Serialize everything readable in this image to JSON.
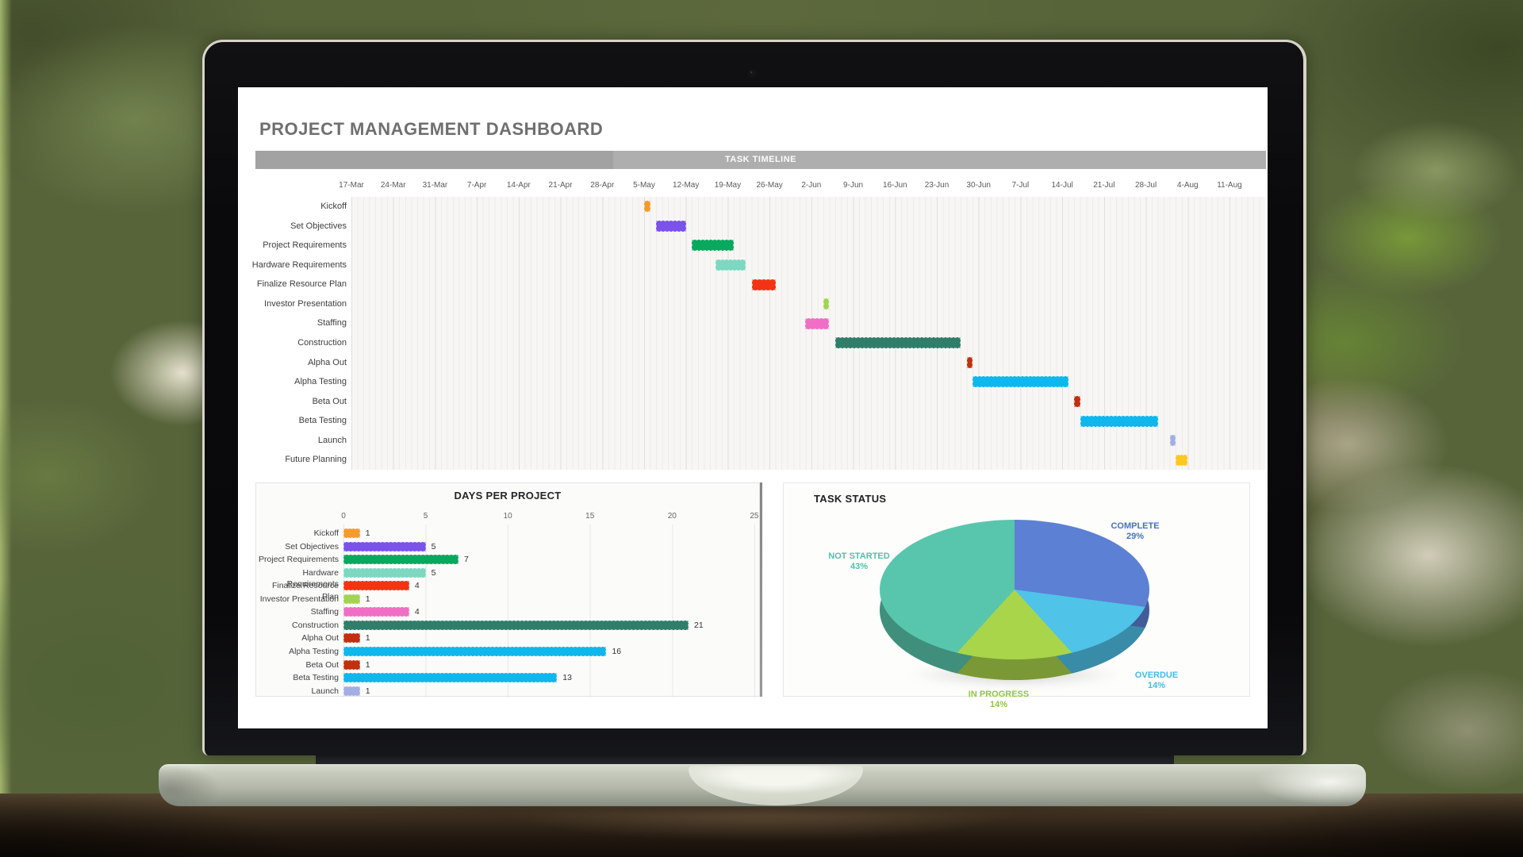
{
  "dashboard": {
    "title": "PROJECT MANAGEMENT DASHBOARD"
  },
  "chart_data": [
    {
      "type": "bar",
      "subtype": "gantt-timeline",
      "title": "TASK TIMELINE",
      "x_tick_labels": [
        "17-Mar",
        "24-Mar",
        "31-Mar",
        "7-Apr",
        "14-Apr",
        "21-Apr",
        "28-Apr",
        "5-May",
        "12-May",
        "19-May",
        "26-May",
        "2-Jun",
        "9-Jun",
        "16-Jun",
        "23-Jun",
        "30-Jun",
        "7-Jul",
        "14-Jul",
        "21-Jul",
        "28-Jul",
        "4-Aug",
        "11-Aug"
      ],
      "days_per_tick": 7,
      "categories": [
        "Kickoff",
        "Set Objectives",
        "Project Requirements",
        "Hardware Requirements",
        "Finalize Resource Plan",
        "Investor Presentation",
        "Staffing",
        "Construction",
        "Alpha Out",
        "Alpha Testing",
        "Beta Out",
        "Beta Testing",
        "Launch",
        "Future Planning"
      ],
      "start_day_offsets": [
        49,
        51,
        57,
        61,
        67,
        79,
        76,
        81,
        103,
        104,
        121,
        122,
        137,
        138
      ],
      "duration_days": [
        1,
        5,
        7,
        5,
        4,
        1,
        4,
        21,
        1,
        16,
        1,
        13,
        1,
        2
      ],
      "bar_colors": [
        "#F59B2C",
        "#7B52EC",
        "#08A95F",
        "#7DD8C1",
        "#F43314",
        "#A2D452",
        "#F06FC4",
        "#307E6A",
        "#C23010",
        "#0FB7EC",
        "#C23010",
        "#0FB7EC",
        "#A3AEE3",
        "#FBC822"
      ],
      "grid": true
    },
    {
      "type": "bar",
      "orientation": "horizontal",
      "title": "DAYS PER PROJECT",
      "categories": [
        "Kickoff",
        "Set Objectives",
        "Project Requirements",
        "Hardware Requirements",
        "Finalize Resource Plan",
        "Investor Presentation",
        "Staffing",
        "Construction",
        "Alpha Out",
        "Alpha Testing",
        "Beta Out",
        "Beta Testing",
        "Launch"
      ],
      "values": [
        1,
        5,
        7,
        5,
        4,
        1,
        4,
        21,
        1,
        16,
        1,
        13,
        1
      ],
      "data_labels": [
        "1",
        "5",
        "7",
        "5",
        "4",
        "1",
        "4",
        "21",
        "1",
        "16",
        "1",
        "13",
        "1"
      ],
      "bar_colors": [
        "#F59B2C",
        "#7B52EC",
        "#08A95F",
        "#7DD8C1",
        "#F43314",
        "#A2D452",
        "#F06FC4",
        "#307E6A",
        "#C23010",
        "#0FB7EC",
        "#C23010",
        "#0FB7EC",
        "#A3AEE3"
      ],
      "xticks": [
        0,
        5,
        10,
        15,
        20,
        25
      ],
      "xlim": [
        0,
        25.3
      ],
      "grid": true
    },
    {
      "type": "pie",
      "style": "3d",
      "title": "TASK STATUS",
      "labels": [
        "COMPLETE",
        "OVERDUE",
        "IN PROGRESS",
        "NOT STARTED"
      ],
      "values": [
        29,
        14,
        14,
        43
      ],
      "pct_labels": [
        "29%",
        "14%",
        "14%",
        "43%"
      ],
      "colors": [
        "#5C80D4",
        "#4FC3E8",
        "#A9D54B",
        "#58C6AC"
      ],
      "label_colors": [
        "#4472C4",
        "#3FBCE8",
        "#8FC73E",
        "#4EC3A7"
      ],
      "start_angle": "12-o-clock, clockwise"
    }
  ]
}
